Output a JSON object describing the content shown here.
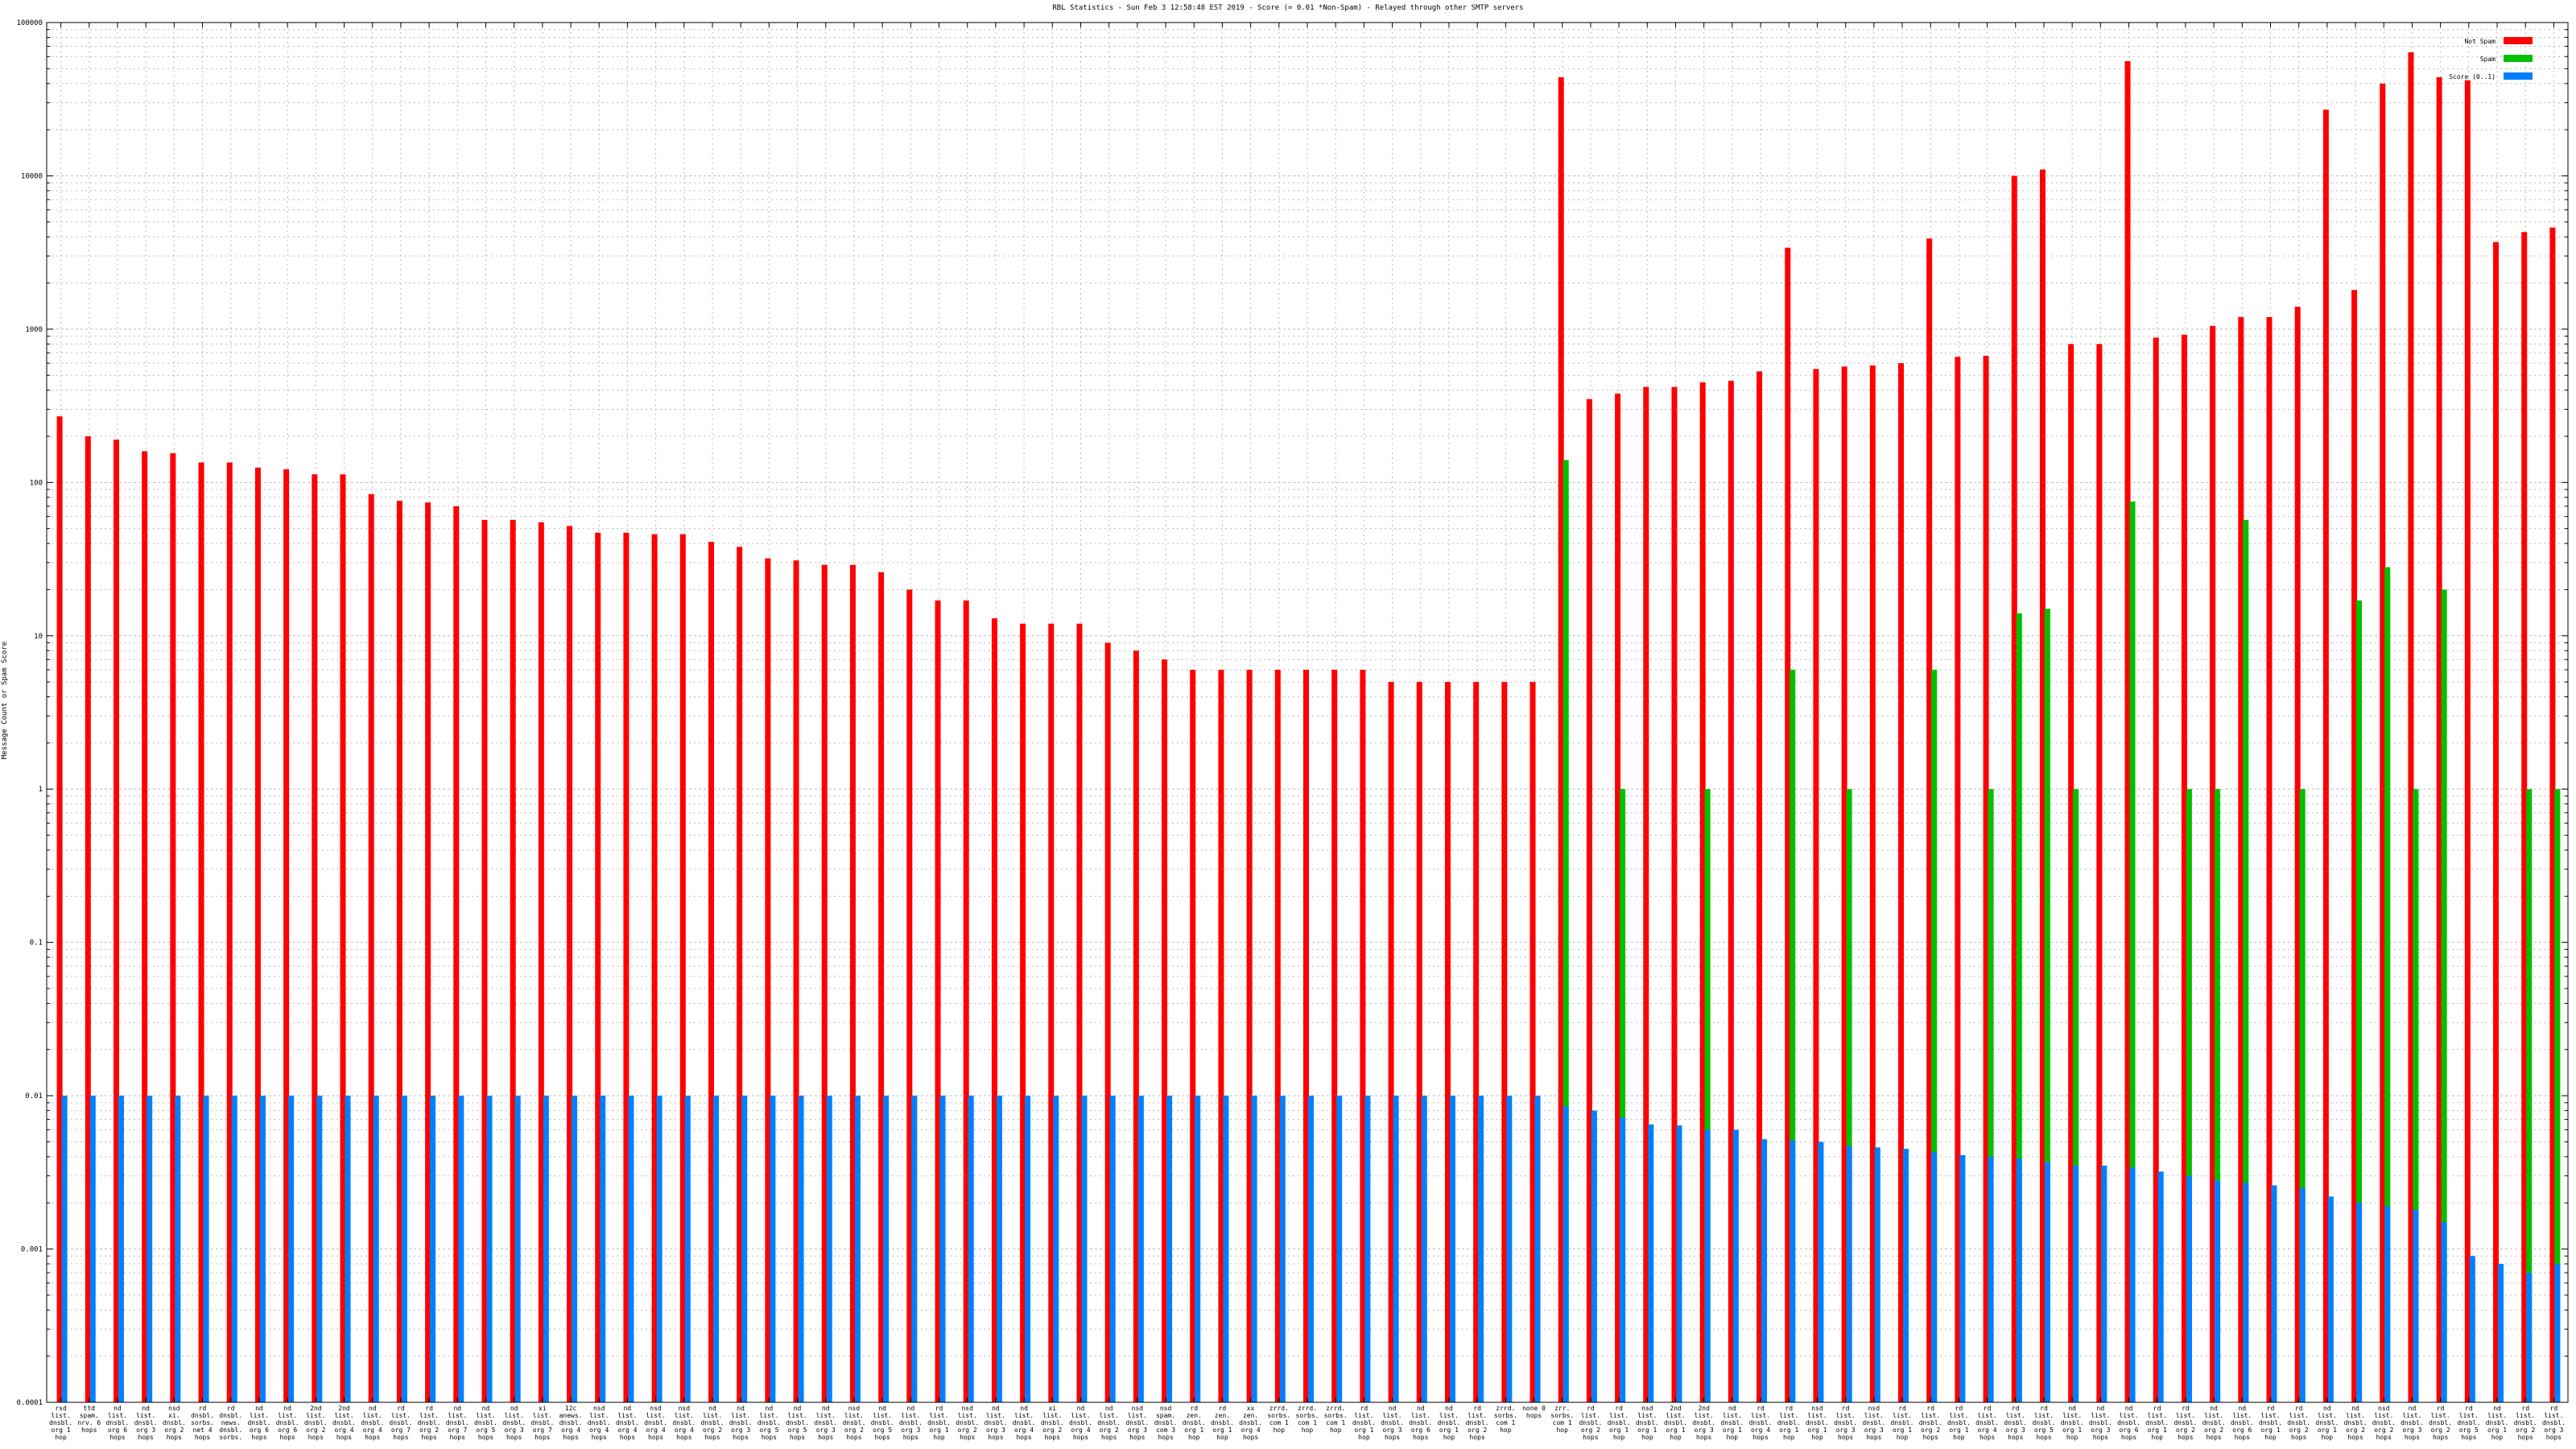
{
  "chart_data": {
    "type": "bar",
    "title": "RBL Statistics - Sun Feb  3 12:58:48 EST 2019 - Score (= 0.01 *Non-Spam) - Relayed through other SMTP servers",
    "ylabel": "Message Count or Spam Score",
    "xlabel": "",
    "yscale": "log",
    "ylim": [
      0.0001,
      100000
    ],
    "yticks": [
      "0.0001",
      "0.001",
      "0.01",
      "0.1",
      "1",
      "10",
      "100",
      "1000",
      "10000",
      "100000"
    ],
    "grid": true,
    "legend_position": "top-right",
    "colors": {
      "Not Spam": "#ff0000",
      "Spam": "#00c000",
      "Score": "#0080ff"
    },
    "categories": [
      "rsd list. dnsbl. org 1 hop",
      "ttd spam. nrv. 6 hops",
      "nd list. dnsbl. org 6 hops",
      "nd list. dnsbl. org 3 hops",
      "nsd xi. dnsbl. org 2 hops",
      "rd dnsbl. sorbs. net 4 hops",
      "rd dnsbl. news. dnsbl. sorbs. net 4 hops",
      "nd list. dnsbl. org 6 hops",
      "nd list. dnsbl. org 6 hops",
      "2nd list. dnsbl. org 2 hops",
      "2nd list. dnsbl. org 4 hops",
      "nd list. dnsbl. org 4 hops",
      "rd list. dnsbl. org 7 hops",
      "rd list. dnsbl. org 2 hops",
      "nd list. dnsbl. org 7 hops",
      "nd list. dnsbl. org 5 hops",
      "nd list. dnsbl. org 3 hops",
      "xi list. dnsbl. org 7 hops",
      "12c anews. dnsbl. org 4 hops",
      "nsd list. dnsbl. org 4 hops",
      "nd list. dnsbl. org 4 hops",
      "nsd list. dnsbl. org 4 hops",
      "nsd list. dnsbl. org 4 hops",
      "nd list. dnsbl. org 2 hops",
      "nd list. dnsbl. org 3 hops",
      "nd list. dnsbl. org 5 hops",
      "nd list. dnsbl. org 5 hops",
      "nd list. dnsbl. org 3 hops",
      "nsd list. dnsbl. org 2 hops",
      "nd list. dnsbl. org 5 hops",
      "nd list. dnsbl. org 3 hops",
      "rd list. dnsbl. org 1 hop",
      "nsd list. dnsbl. org 2 hops",
      "nd list. dnsbl. org 3 hops",
      "nd list. dnsbl. org 4 hops",
      "xi list. dnsbl. org 2 hops",
      "nd list. dnsbl. org 4 hops",
      "nd list. dnsbl. org 2 hops",
      "nsd list. dnsbl. org 3 hops",
      "nsd spam. dnsbl. com 3 hops",
      "rd zen. dnsbl. org 1 hop",
      "rd zen. dnsbl. org 1 hop",
      "xx zen. dnsbl. org 4 hops",
      "zrrd. sorbs. com 1 hop",
      "zrrd. sorbs. com 1 hop",
      "zrrd. sorbs. com 1 hop",
      "rd list. dnsbl. org 1 hop",
      "nd list. dnsbl. org 3 hops",
      "nd list. dnsbl. org 6 hops",
      "nd list. dnsbl. org 1 hop",
      "rd list. dnsbl. org 2 hops",
      "zrrd. sorbs. com 1 hop",
      "none 0 hops",
      "zrr. sorbs. com 1 hop",
      "rd list. dnsbl. org 2 hops",
      "rd list. dnsbl. org 1 hop",
      "nsd list. dnsbl. org 1 hop",
      "2nd list. dnsbl. org 1 hop",
      "2nd list. dnsbl. org 3 hops",
      "nd list. dnsbl. org 1 hop",
      "rd list. dnsbl. org 4 hops",
      "rd list. dnsbl. org 1 hop",
      "nsd list. dnsbl. org 1 hop",
      "rd list. dnsbl. org 3 hops",
      "nsd list. dnsbl. org 3 hops",
      "rd list. dnsbl. org 1 hop",
      "rd list. dnsbl. org 2 hops",
      "rd list. dnsbl. org 1 hop",
      "rd list. dnsbl. org 4 hops",
      "rd list. dnsbl. org 3 hops",
      "rd list. dnsbl. org 5 hops",
      "nd list. dnsbl. org 1 hop",
      "nd list. dnsbl. org 3 hops",
      "nd list. dnsbl. org 6 hops",
      "rd list. dnsbl. org 1 hop",
      "rd list. dnsbl. org 2 hops",
      "nd list. dnsbl. org 2 hops",
      "nd list. dnsbl. org 6 hops",
      "rd list. dnsbl. org 1 hop",
      "rd list. dnsbl. org 2 hops",
      "nd list. dnsbl. org 1 hop",
      "nd list. dnsbl. org 2 hops",
      "nsd list. dnsbl. org 2 hops",
      "nd list. dnsbl. org 3 hops",
      "rd list. dnsbl. org 2 hops",
      "rd list. dnsbl. org 5 hops",
      "nd list. dnsbl. org 1 hop",
      "rd list. dnsbl. org 2 hops",
      "rd list. dnsbl. org 3 hops"
    ],
    "series": [
      {
        "name": "Not Spam",
        "values": [
          270,
          200,
          190,
          160,
          155,
          135,
          135,
          125,
          122,
          113,
          113,
          84,
          76,
          74,
          70,
          57,
          57,
          55,
          52,
          47,
          47,
          46,
          46,
          41,
          38,
          32,
          31,
          29,
          29,
          26,
          20,
          17,
          17,
          13,
          12,
          12,
          12,
          9,
          8,
          7,
          6,
          6,
          6,
          6,
          6,
          6,
          6,
          5,
          5,
          5,
          5,
          5,
          5,
          44000,
          350,
          380,
          420,
          420,
          450,
          460,
          530,
          3400,
          550,
          570,
          580,
          600,
          3900,
          660,
          670,
          10000,
          11000,
          800,
          800,
          56000,
          880,
          920,
          1050,
          1200,
          1200,
          1400,
          27000,
          1800,
          40000,
          64000,
          44000,
          42000,
          3700,
          4300,
          4600
        ]
      },
      {
        "name": "Spam",
        "values": [
          0,
          0,
          0,
          0,
          0,
          0,
          0,
          0,
          0,
          0,
          0,
          0,
          0,
          0,
          0,
          0,
          0,
          0,
          0,
          0,
          0,
          0,
          0,
          0,
          0,
          0,
          0,
          0,
          0,
          0,
          0,
          0,
          0,
          0,
          0,
          0,
          0,
          0,
          0,
          0,
          0,
          0,
          0,
          0,
          0,
          0,
          0,
          0,
          0,
          0,
          0,
          0,
          0,
          140,
          0,
          1,
          0,
          0,
          1,
          0,
          0,
          6,
          0,
          1,
          0,
          0,
          6,
          0,
          1,
          14,
          15,
          1,
          0,
          75,
          0,
          1,
          1,
          57,
          0,
          1,
          0,
          17,
          28,
          1,
          20,
          0,
          0,
          1,
          1
        ]
      },
      {
        "name": "Score (0..1)",
        "values": [
          0.01,
          0.01,
          0.01,
          0.01,
          0.01,
          0.01,
          0.01,
          0.01,
          0.01,
          0.01,
          0.01,
          0.01,
          0.01,
          0.01,
          0.01,
          0.01,
          0.01,
          0.01,
          0.01,
          0.01,
          0.01,
          0.01,
          0.01,
          0.01,
          0.01,
          0.01,
          0.01,
          0.01,
          0.01,
          0.01,
          0.01,
          0.01,
          0.01,
          0.01,
          0.01,
          0.01,
          0.01,
          0.01,
          0.01,
          0.01,
          0.01,
          0.01,
          0.01,
          0.01,
          0.01,
          0.01,
          0.01,
          0.01,
          0.01,
          0.01,
          0.01,
          0.01,
          0.01,
          0.0085,
          0.008,
          0.0072,
          0.0065,
          0.0064,
          0.006,
          0.006,
          0.0052,
          0.0051,
          0.005,
          0.0047,
          0.0046,
          0.0045,
          0.0043,
          0.0041,
          0.004,
          0.0039,
          0.0037,
          0.0035,
          0.0035,
          0.0034,
          0.0032,
          0.003,
          0.0028,
          0.0027,
          0.0026,
          0.0025,
          0.0022,
          0.002,
          0.0019,
          0.0018,
          0.0015,
          0.0009,
          0.0008,
          0.0007,
          0.0008
        ]
      }
    ]
  }
}
